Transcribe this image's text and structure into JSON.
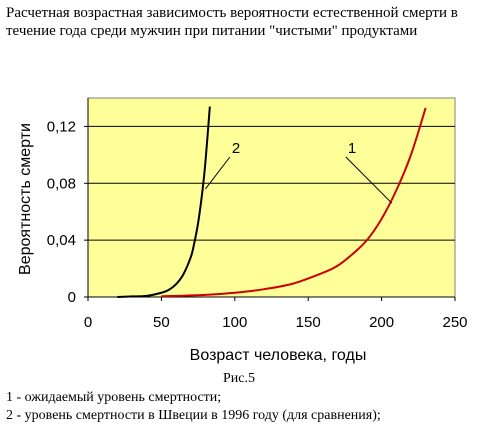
{
  "chart_data": {
    "type": "line",
    "title": "Расчетная возрастная зависимость вероятности естественной смерти в течение года среди мужчин при питании \"чистыми\" продуктами",
    "xlabel": "Возраст человека, годы",
    "ylabel": "Вероятность смерти",
    "xlim": [
      0,
      250
    ],
    "ylim": [
      0,
      0.14
    ],
    "xticks": [
      0,
      50,
      100,
      150,
      200,
      250
    ],
    "yticks": [
      0,
      0.04,
      0.08,
      0.12
    ],
    "xtick_labels": [
      "0",
      "50",
      "100",
      "150",
      "200",
      "250"
    ],
    "ytick_labels": [
      "0",
      "0,04",
      "0,08",
      "0,12"
    ],
    "grid": "horizontal",
    "series": [
      {
        "name": "1",
        "color": "#cc0000",
        "x": [
          50,
          80,
          100,
          120,
          140,
          160,
          170,
          180,
          190,
          200,
          210,
          220,
          230
        ],
        "y": [
          0.0005,
          0.0015,
          0.003,
          0.0055,
          0.0095,
          0.017,
          0.022,
          0.03,
          0.04,
          0.055,
          0.075,
          0.1,
          0.133
        ]
      },
      {
        "name": "2",
        "color": "#000000",
        "x": [
          20,
          30,
          40,
          50,
          55,
          60,
          65,
          70,
          72,
          75,
          78,
          80,
          83
        ],
        "y": [
          0.0,
          0.0004,
          0.0008,
          0.003,
          0.005,
          0.009,
          0.016,
          0.028,
          0.036,
          0.052,
          0.075,
          0.095,
          0.134
        ]
      }
    ]
  },
  "caption": {
    "figure": "Рис.5",
    "line1": "1 - ожидаемый уровень смертности;",
    "line2": " 2 - уровень смертности в Швеции в 1996 году (для сравнения);"
  },
  "colors": {
    "plot_background": "#ffff99",
    "grid": "#000000"
  }
}
